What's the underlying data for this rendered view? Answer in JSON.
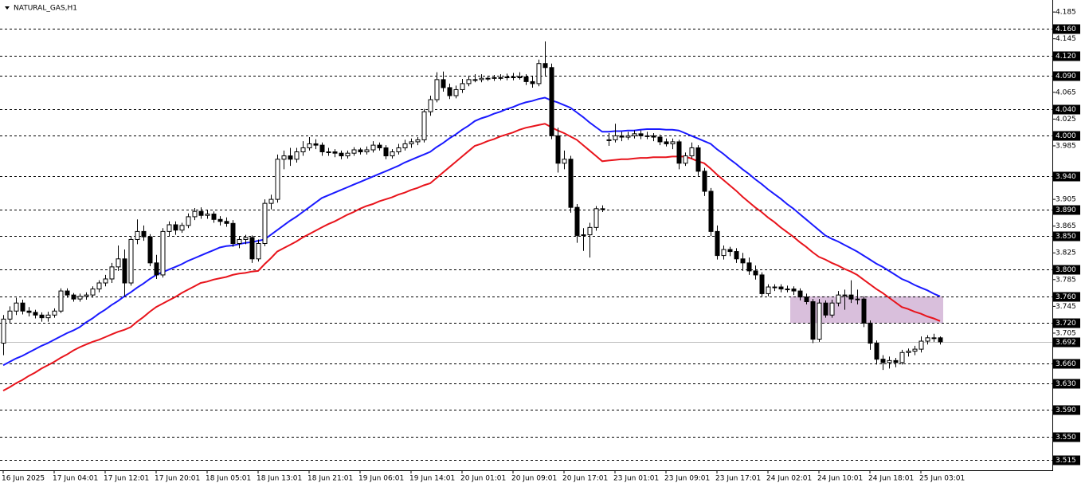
{
  "chart_data": {
    "type": "candlestick",
    "title": "NATURAL_GAS,H1",
    "categories": [
      "16 Jun 2025",
      null,
      null,
      null,
      null,
      null,
      null,
      null,
      "17 Jun 04:01",
      null,
      null,
      null,
      null,
      null,
      null,
      null,
      "17 Jun 12:01",
      null,
      null,
      null,
      null,
      null,
      null,
      null,
      "17 Jun 20:01",
      null,
      null,
      null,
      null,
      null,
      null,
      null,
      "18 Jun 05:01",
      null,
      null,
      null,
      null,
      null,
      null,
      null,
      "18 Jun 13:01",
      null,
      null,
      null,
      null,
      null,
      null,
      null,
      "18 Jun 21:01",
      null,
      null,
      null,
      null,
      null,
      null,
      null,
      "19 Jun 06:01",
      null,
      null,
      null,
      null,
      null,
      null,
      null,
      "19 Jun 14:01",
      null,
      null,
      null,
      null,
      null,
      null,
      null,
      "20 Jun 01:01",
      null,
      null,
      null,
      null,
      null,
      null,
      null,
      "20 Jun 09:01",
      null,
      null,
      null,
      null,
      null,
      null,
      null,
      "20 Jun 17:01",
      null,
      null,
      null,
      null,
      null,
      null,
      null,
      "23 Jun 01:01",
      null,
      null,
      null,
      null,
      null,
      null,
      null,
      "23 Jun 09:01",
      null,
      null,
      null,
      null,
      null,
      null,
      null,
      "23 Jun 17:01",
      null,
      null,
      null,
      null,
      null,
      null,
      null,
      "24 Jun 02:01",
      null,
      null,
      null,
      null,
      null,
      null,
      null,
      "24 Jun 10:01",
      null,
      null,
      null,
      null,
      null,
      null,
      null,
      "24 Jun 18:01",
      null,
      null,
      null,
      null,
      null,
      null,
      null,
      "25 Jun 03:01",
      null,
      null,
      null
    ],
    "candles": [
      [
        3.69,
        3.732,
        3.672,
        3.726
      ],
      [
        3.726,
        3.745,
        3.72,
        3.738
      ],
      [
        3.738,
        3.758,
        3.732,
        3.75
      ],
      [
        3.75,
        3.755,
        3.733,
        3.738
      ],
      [
        3.738,
        3.744,
        3.73,
        3.736
      ],
      [
        3.736,
        3.74,
        3.727,
        3.732
      ],
      [
        3.732,
        3.736,
        3.722,
        3.728
      ],
      [
        3.728,
        3.737,
        3.722,
        3.732
      ],
      [
        3.732,
        3.742,
        3.728,
        3.738
      ],
      [
        3.738,
        3.772,
        3.735,
        3.768
      ],
      [
        3.768,
        3.772,
        3.758,
        3.762
      ],
      [
        3.762,
        3.765,
        3.752,
        3.756
      ],
      [
        3.756,
        3.764,
        3.752,
        3.76
      ],
      [
        3.76,
        3.766,
        3.755,
        3.762
      ],
      [
        3.762,
        3.775,
        3.758,
        3.771
      ],
      [
        3.771,
        3.784,
        3.766,
        3.78
      ],
      [
        3.78,
        3.792,
        3.775,
        3.786
      ],
      [
        3.786,
        3.81,
        3.78,
        3.804
      ],
      [
        3.804,
        3.836,
        3.798,
        3.816
      ],
      [
        3.816,
        3.83,
        3.76,
        3.78
      ],
      [
        3.78,
        3.85,
        3.776,
        3.845
      ],
      [
        3.845,
        3.875,
        3.838,
        3.857
      ],
      [
        3.857,
        3.866,
        3.843,
        3.849
      ],
      [
        3.849,
        3.853,
        3.805,
        3.81
      ],
      [
        3.81,
        3.822,
        3.786,
        3.792
      ],
      [
        3.792,
        3.862,
        3.788,
        3.857
      ],
      [
        3.857,
        3.872,
        3.85,
        3.867
      ],
      [
        3.867,
        3.872,
        3.852,
        3.859
      ],
      [
        3.859,
        3.87,
        3.855,
        3.866
      ],
      [
        3.866,
        3.884,
        3.862,
        3.879
      ],
      [
        3.879,
        3.892,
        3.874,
        3.887
      ],
      [
        3.887,
        3.893,
        3.876,
        3.881
      ],
      [
        3.881,
        3.889,
        3.876,
        3.883
      ],
      [
        3.883,
        3.887,
        3.87,
        3.875
      ],
      [
        3.875,
        3.88,
        3.866,
        3.872
      ],
      [
        3.872,
        3.878,
        3.864,
        3.869
      ],
      [
        3.869,
        3.874,
        3.834,
        3.839
      ],
      [
        3.839,
        3.85,
        3.832,
        3.845
      ],
      [
        3.845,
        3.852,
        3.838,
        3.848
      ],
      [
        3.848,
        3.851,
        3.81,
        3.816
      ],
      [
        3.816,
        3.845,
        3.812,
        3.839
      ],
      [
        3.839,
        3.905,
        3.835,
        3.899
      ],
      [
        3.899,
        3.912,
        3.89,
        3.905
      ],
      [
        3.905,
        3.972,
        3.9,
        3.965
      ],
      [
        3.965,
        3.978,
        3.95,
        3.97
      ],
      [
        3.97,
        3.982,
        3.955,
        3.965
      ],
      [
        3.965,
        3.982,
        3.96,
        3.976
      ],
      [
        3.976,
        3.992,
        3.97,
        3.982
      ],
      [
        3.982,
        3.998,
        3.978,
        3.988
      ],
      [
        3.988,
        3.995,
        3.98,
        3.986
      ],
      [
        3.986,
        3.99,
        3.97,
        3.976
      ],
      [
        3.976,
        3.982,
        3.97,
        3.976
      ],
      [
        3.976,
        3.98,
        3.968,
        3.974
      ],
      [
        3.974,
        3.978,
        3.965,
        3.97
      ],
      [
        3.97,
        3.978,
        3.966,
        3.974
      ],
      [
        3.974,
        3.983,
        3.97,
        3.979
      ],
      [
        3.979,
        3.982,
        3.972,
        3.976
      ],
      [
        3.976,
        3.984,
        3.972,
        3.979
      ],
      [
        3.979,
        3.992,
        3.975,
        3.986
      ],
      [
        3.986,
        3.99,
        3.978,
        3.982
      ],
      [
        3.982,
        3.986,
        3.965,
        3.97
      ],
      [
        3.97,
        3.98,
        3.966,
        3.976
      ],
      [
        3.976,
        3.988,
        3.972,
        3.982
      ],
      [
        3.982,
        3.994,
        3.978,
        3.988
      ],
      [
        3.988,
        3.996,
        3.982,
        3.991
      ],
      [
        3.991,
        3.998,
        3.986,
        3.994
      ],
      [
        3.994,
        4.04,
        3.99,
        4.036
      ],
      [
        4.036,
        4.06,
        4.03,
        4.054
      ],
      [
        4.054,
        4.095,
        4.05,
        4.084
      ],
      [
        4.084,
        4.096,
        4.066,
        4.072
      ],
      [
        4.072,
        4.078,
        4.055,
        4.06
      ],
      [
        4.06,
        4.075,
        4.056,
        4.069
      ],
      [
        4.069,
        4.085,
        4.064,
        4.078
      ],
      [
        4.078,
        4.09,
        4.074,
        4.084
      ],
      [
        4.084,
        4.092,
        4.08,
        4.084
      ],
      [
        4.084,
        4.092,
        4.08,
        4.086
      ],
      [
        4.086,
        4.09,
        4.082,
        4.086
      ],
      [
        4.086,
        4.091,
        4.082,
        4.087
      ],
      [
        4.087,
        4.092,
        4.083,
        4.087
      ],
      [
        4.087,
        4.093,
        4.083,
        4.088
      ],
      [
        4.088,
        4.094,
        4.083,
        4.087
      ],
      [
        4.087,
        4.095,
        4.084,
        4.088
      ],
      [
        4.088,
        4.092,
        4.076,
        4.081
      ],
      [
        4.081,
        4.09,
        4.072,
        4.078
      ],
      [
        4.078,
        4.114,
        4.074,
        4.108
      ],
      [
        4.108,
        4.141,
        4.09,
        4.102
      ],
      [
        4.102,
        4.108,
        3.995,
        4.0
      ],
      [
        4.0,
        4.012,
        3.945,
        3.959
      ],
      [
        3.959,
        3.978,
        3.95,
        3.965
      ],
      [
        3.965,
        3.97,
        3.885,
        3.893
      ],
      [
        3.893,
        3.898,
        3.84,
        3.851
      ],
      [
        3.851,
        3.862,
        3.828,
        3.852
      ],
      [
        3.852,
        3.87,
        3.818,
        3.863
      ],
      [
        3.863,
        3.895,
        3.858,
        3.891
      ],
      [
        3.891,
        3.896,
        3.886,
        3.891
      ],
      [
        3.994,
        4.004,
        3.985,
        3.994
      ],
      [
        3.994,
        4.018,
        3.99,
        4.0
      ],
      [
        4.0,
        4.006,
        3.992,
        3.998
      ],
      [
        3.998,
        4.006,
        3.994,
        4.0
      ],
      [
        4.0,
        4.008,
        3.996,
        4.003
      ],
      [
        4.003,
        4.008,
        3.995,
        4.0
      ],
      [
        4.0,
        4.006,
        3.995,
        4.0
      ],
      [
        4.0,
        4.004,
        3.992,
        3.998
      ],
      [
        3.998,
        4.002,
        3.986,
        3.991
      ],
      [
        3.991,
        3.996,
        3.984,
        3.988
      ],
      [
        3.988,
        3.996,
        3.98,
        3.991
      ],
      [
        3.991,
        3.994,
        3.95,
        3.959
      ],
      [
        3.959,
        3.975,
        3.955,
        3.97
      ],
      [
        3.97,
        3.99,
        3.966,
        3.982
      ],
      [
        3.982,
        3.986,
        3.94,
        3.947
      ],
      [
        3.947,
        3.952,
        3.91,
        3.917
      ],
      [
        3.917,
        3.922,
        3.85,
        3.857
      ],
      [
        3.857,
        3.866,
        3.815,
        3.821
      ],
      [
        3.821,
        3.836,
        3.815,
        3.83
      ],
      [
        3.83,
        3.834,
        3.82,
        3.827
      ],
      [
        3.827,
        3.832,
        3.81,
        3.816
      ],
      [
        3.816,
        3.825,
        3.798,
        3.81
      ],
      [
        3.81,
        3.818,
        3.792,
        3.798
      ],
      [
        3.798,
        3.806,
        3.785,
        3.792
      ],
      [
        3.792,
        3.796,
        3.76,
        3.764
      ],
      [
        3.764,
        3.778,
        3.76,
        3.774
      ],
      [
        3.774,
        3.778,
        3.768,
        3.774
      ],
      [
        3.774,
        3.778,
        3.766,
        3.771
      ],
      [
        3.771,
        3.776,
        3.766,
        3.771
      ],
      [
        3.771,
        3.775,
        3.762,
        3.768
      ],
      [
        3.768,
        3.772,
        3.754,
        3.759
      ],
      [
        3.759,
        3.764,
        3.748,
        3.752
      ],
      [
        3.752,
        3.756,
        3.69,
        3.696
      ],
      [
        3.696,
        3.756,
        3.692,
        3.75
      ],
      [
        3.75,
        3.754,
        3.728,
        3.732
      ],
      [
        3.732,
        3.755,
        3.728,
        3.75
      ],
      [
        3.75,
        3.768,
        3.745,
        3.762
      ],
      [
        3.762,
        3.77,
        3.74,
        3.762
      ],
      [
        3.762,
        3.784,
        3.75,
        3.756
      ],
      [
        3.756,
        3.77,
        3.748,
        3.756
      ],
      [
        3.756,
        3.76,
        3.714,
        3.72
      ],
      [
        3.72,
        3.724,
        3.68,
        3.69
      ],
      [
        3.69,
        3.694,
        3.658,
        3.666
      ],
      [
        3.666,
        3.672,
        3.65,
        3.661
      ],
      [
        3.661,
        3.67,
        3.652,
        3.664
      ],
      [
        3.664,
        3.668,
        3.654,
        3.661
      ],
      [
        3.661,
        3.68,
        3.658,
        3.676
      ],
      [
        3.676,
        3.682,
        3.67,
        3.678
      ],
      [
        3.678,
        3.686,
        3.672,
        3.681
      ],
      [
        3.681,
        3.7,
        3.676,
        3.693
      ],
      [
        3.693,
        3.702,
        3.688,
        3.698
      ],
      [
        3.698,
        3.704,
        3.692,
        3.698
      ],
      [
        3.698,
        3.7,
        3.688,
        3.692
      ]
    ],
    "up_color": "#ffffff",
    "down_color": "#000000",
    "outline_color": "#000000",
    "lines": [
      {
        "color": "#1a1aff",
        "values": [
          3.657,
          3.662,
          3.667,
          3.671,
          3.676,
          3.681,
          3.686,
          3.69,
          3.695,
          3.7,
          3.705,
          3.709,
          3.714,
          3.721,
          3.727,
          3.734,
          3.74,
          3.747,
          3.753,
          3.76,
          3.766,
          3.773,
          3.779,
          3.786,
          3.792,
          3.796,
          3.8,
          3.804,
          3.808,
          3.813,
          3.817,
          3.821,
          3.825,
          3.829,
          3.833,
          3.835,
          3.836,
          3.838,
          3.84,
          3.841,
          3.843,
          3.845,
          3.852,
          3.859,
          3.866,
          3.873,
          3.879,
          3.886,
          3.893,
          3.9,
          3.907,
          3.911,
          3.915,
          3.919,
          3.923,
          3.927,
          3.931,
          3.935,
          3.939,
          3.943,
          3.947,
          3.951,
          3.955,
          3.96,
          3.964,
          3.968,
          3.972,
          3.976,
          3.983,
          3.989,
          3.996,
          4.002,
          4.009,
          4.015,
          4.022,
          4.026,
          4.029,
          4.033,
          4.036,
          4.04,
          4.043,
          4.047,
          4.05,
          4.052,
          4.055,
          4.057,
          4.053,
          4.05,
          4.046,
          4.042,
          4.035,
          4.028,
          4.02,
          4.013,
          4.006,
          4.006,
          4.007,
          4.007,
          4.008,
          4.008,
          4.009,
          4.01,
          4.01,
          4.01,
          4.009,
          4.009,
          4.008,
          4.004,
          4.0,
          3.996,
          3.992,
          3.988,
          3.98,
          3.973,
          3.965,
          3.958,
          3.95,
          3.943,
          3.935,
          3.928,
          3.92,
          3.913,
          3.906,
          3.898,
          3.891,
          3.883,
          3.875,
          3.867,
          3.859,
          3.851,
          3.846,
          3.842,
          3.837,
          3.832,
          3.827,
          3.821,
          3.815,
          3.809,
          3.804,
          3.798,
          3.792,
          3.786,
          3.782,
          3.777,
          3.773,
          3.769,
          3.764,
          3.76
        ]
      },
      {
        "color": "#e8141c",
        "values": [
          3.619,
          3.624,
          3.63,
          3.635,
          3.641,
          3.646,
          3.652,
          3.657,
          3.662,
          3.668,
          3.673,
          3.679,
          3.684,
          3.688,
          3.692,
          3.695,
          3.699,
          3.703,
          3.707,
          3.71,
          3.714,
          3.722,
          3.729,
          3.737,
          3.744,
          3.749,
          3.754,
          3.759,
          3.765,
          3.77,
          3.775,
          3.78,
          3.782,
          3.785,
          3.787,
          3.789,
          3.792,
          3.794,
          3.795,
          3.797,
          3.798,
          3.808,
          3.817,
          3.827,
          3.832,
          3.837,
          3.842,
          3.848,
          3.853,
          3.858,
          3.863,
          3.868,
          3.872,
          3.877,
          3.882,
          3.886,
          3.891,
          3.895,
          3.898,
          3.902,
          3.905,
          3.908,
          3.912,
          3.915,
          3.919,
          3.922,
          3.926,
          3.929,
          3.937,
          3.945,
          3.953,
          3.961,
          3.969,
          3.977,
          3.985,
          3.988,
          3.992,
          3.995,
          3.999,
          4.002,
          4.005,
          4.009,
          4.012,
          4.014,
          4.016,
          4.018,
          4.013,
          4.008,
          4.004,
          3.999,
          3.994,
          3.986,
          3.978,
          3.97,
          3.962,
          3.963,
          3.964,
          3.965,
          3.965,
          3.966,
          3.967,
          3.967,
          3.968,
          3.968,
          3.968,
          3.969,
          3.969,
          3.969,
          3.966,
          3.962,
          3.959,
          3.951,
          3.942,
          3.934,
          3.926,
          3.918,
          3.909,
          3.901,
          3.893,
          3.886,
          3.878,
          3.871,
          3.863,
          3.856,
          3.849,
          3.841,
          3.834,
          3.826,
          3.819,
          3.815,
          3.81,
          3.806,
          3.801,
          3.797,
          3.792,
          3.785,
          3.778,
          3.771,
          3.765,
          3.758,
          3.751,
          3.744,
          3.741,
          3.737,
          3.734,
          3.73,
          3.727,
          3.723
        ]
      }
    ],
    "zone": {
      "from": 124,
      "to": 147,
      "high": 3.76,
      "low": 3.72,
      "color": "#d9bfdc"
    },
    "ylim": [
      3.5,
      4.203
    ],
    "yticks": [
      4.185,
      4.145,
      4.065,
      4.025,
      3.985,
      3.905,
      3.865,
      3.825,
      3.785,
      3.745,
      3.705
    ],
    "levels": [
      {
        "value": 4.16,
        "label": "4.160"
      },
      {
        "value": 4.12,
        "label": "4.120"
      },
      {
        "value": 4.09,
        "label": "4.090"
      },
      {
        "value": 4.04,
        "label": "4.040"
      },
      {
        "value": 4.0,
        "label": "4.000"
      },
      {
        "value": 3.94,
        "label": "3.940"
      },
      {
        "value": 3.89,
        "label": "3.890"
      },
      {
        "value": 3.85,
        "label": "3.850"
      },
      {
        "value": 3.8,
        "label": "3.800"
      },
      {
        "value": 3.76,
        "label": "3.760"
      },
      {
        "value": 3.72,
        "label": "3.720"
      },
      {
        "value": 3.66,
        "label": "3.660"
      },
      {
        "value": 3.63,
        "label": "3.630"
      },
      {
        "value": 3.59,
        "label": "3.590"
      },
      {
        "value": 3.55,
        "label": "3.550"
      },
      {
        "value": 3.515,
        "label": "3.515"
      }
    ],
    "current_price": 3.692
  }
}
